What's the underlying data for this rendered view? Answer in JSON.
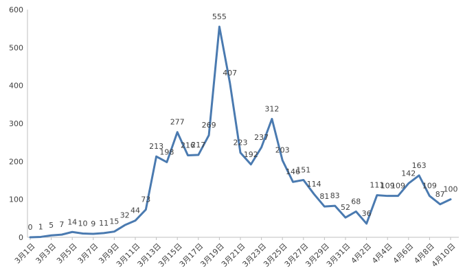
{
  "chart_data": {
    "type": "line",
    "title": "",
    "xlabel": "",
    "ylabel": "",
    "ylim": [
      0,
      600
    ],
    "yticks": [
      "0",
      "100",
      "200",
      "300",
      "400",
      "500",
      "600"
    ],
    "grid": false,
    "legend": "none",
    "line_color": "#4a7ab0",
    "x": [
      "3月1日",
      "3月2日",
      "3月3日",
      "3月4日",
      "3月5日",
      "3月6日",
      "3月7日",
      "3月8日",
      "3月9日",
      "3月10日",
      "3月11日",
      "3月12日",
      "3月13日",
      "3月14日",
      "3月15日",
      "3月16日",
      "3月17日",
      "3月18日",
      "3月19日",
      "3月20日",
      "3月21日",
      "3月22日",
      "3月23日",
      "3月24日",
      "3月25日",
      "3月26日",
      "3月27日",
      "3月28日",
      "3月29日",
      "3月30日",
      "3月31日",
      "4月1日",
      "4月2日",
      "4月3日",
      "4月4日",
      "4月5日",
      "4月6日",
      "4月7日",
      "4月8日",
      "4月9日",
      "4月10日"
    ],
    "xticks": [
      "3月1日",
      "3月3日",
      "3月5日",
      "3月7日",
      "3月9日",
      "3月11日",
      "3月13日",
      "3月15日",
      "3月17日",
      "3月19日",
      "3月21日",
      "3月23日",
      "3月25日",
      "3月27日",
      "3月29日",
      "3月31日",
      "4月2日",
      "4月4日",
      "4月6日",
      "4月8日",
      "4月10日"
    ],
    "series": [
      {
        "values": [
          0,
          1,
          5,
          7,
          14,
          10,
          9,
          11,
          15,
          32,
          44,
          73,
          213,
          198,
          277,
          216,
          217,
          269,
          555,
          407,
          223,
          192,
          237,
          312,
          203,
          146,
          151,
          114,
          81,
          83,
          52,
          68,
          36,
          111,
          109,
          109,
          142,
          163,
          109,
          87,
          100
        ]
      }
    ]
  }
}
